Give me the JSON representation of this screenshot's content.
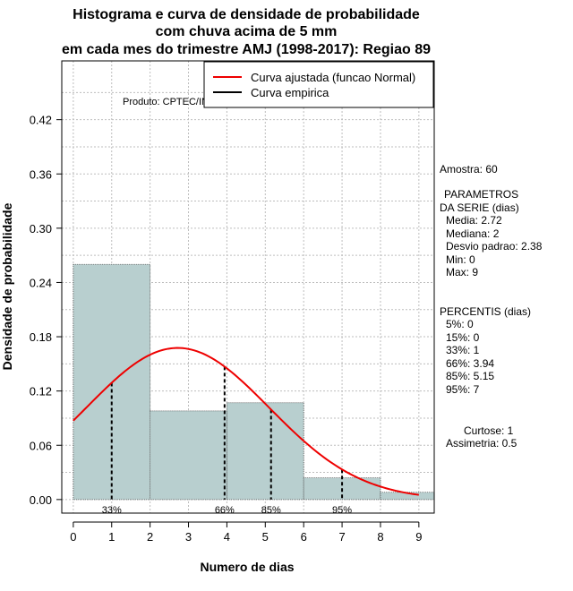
{
  "chart_data": {
    "type": "bar",
    "title_lines": [
      "Histograma e curva de densidade de probabilidade",
      "com chuva acima de 5 mm",
      "em cada mes do trimestre AMJ (1998-2017): Regiao 89"
    ],
    "xlabel": "Numero de dias",
    "ylabel": "Densidade de probabilidade",
    "xlim": [
      -0.3,
      9.4
    ],
    "ylim": [
      -0.015,
      0.485
    ],
    "x_ticks": [
      "0",
      "1",
      "2",
      "3",
      "4",
      "5",
      "6",
      "7",
      "8",
      "9"
    ],
    "y_ticks": [
      "0.00",
      "0.06",
      "0.12",
      "0.18",
      "0.24",
      "0.30",
      "0.36",
      "0.42"
    ],
    "grid": true,
    "bins": [
      {
        "start": 0,
        "end": 2,
        "density": 0.26
      },
      {
        "start": 2,
        "end": 4,
        "density": 0.098
      },
      {
        "start": 4,
        "end": 6,
        "density": 0.107
      },
      {
        "start": 6,
        "end": 8,
        "density": 0.024
      },
      {
        "start": 8,
        "end": 10,
        "density": 0.008
      }
    ],
    "normal_fit": {
      "mean": 2.72,
      "sd": 2.38,
      "x_from": 0,
      "x_to": 9
    },
    "percentile_markers": [
      {
        "label": "33%",
        "x": 1.0
      },
      {
        "label": "66%",
        "x": 3.94
      },
      {
        "label": "85%",
        "x": 5.15
      },
      {
        "label": "95%",
        "x": 7.0
      }
    ],
    "legend": [
      {
        "label": "Curva ajustada (funcao Normal)",
        "color": "#ee0000"
      },
      {
        "label": "Curva empirica",
        "color": "#000000"
      }
    ],
    "credit": "Produto: CPTEC/INPE"
  },
  "colors": {
    "bar_fill": "#b8cfcf",
    "curve": "#ee0000",
    "grid": "#bdbdbd",
    "axis": "#000000"
  },
  "side_panel": {
    "sample": "Amostra: 60",
    "params_title_1": "PARAMETROS",
    "params_title_2": "DA SERIE (dias)",
    "params": [
      "Media: 2.72",
      "Mediana: 2",
      "Desvio padrao: 2.38",
      "Min: 0",
      "Max: 9"
    ],
    "percentis_title": "PERCENTIS (dias)",
    "percentis": [
      "5%: 0",
      "15%: 0",
      "33%: 1",
      "66%: 3.94",
      "85%: 5.15",
      "95%: 7"
    ],
    "curtose": "Curtose: 1",
    "assimetria": "Assimetria: 0.5"
  }
}
